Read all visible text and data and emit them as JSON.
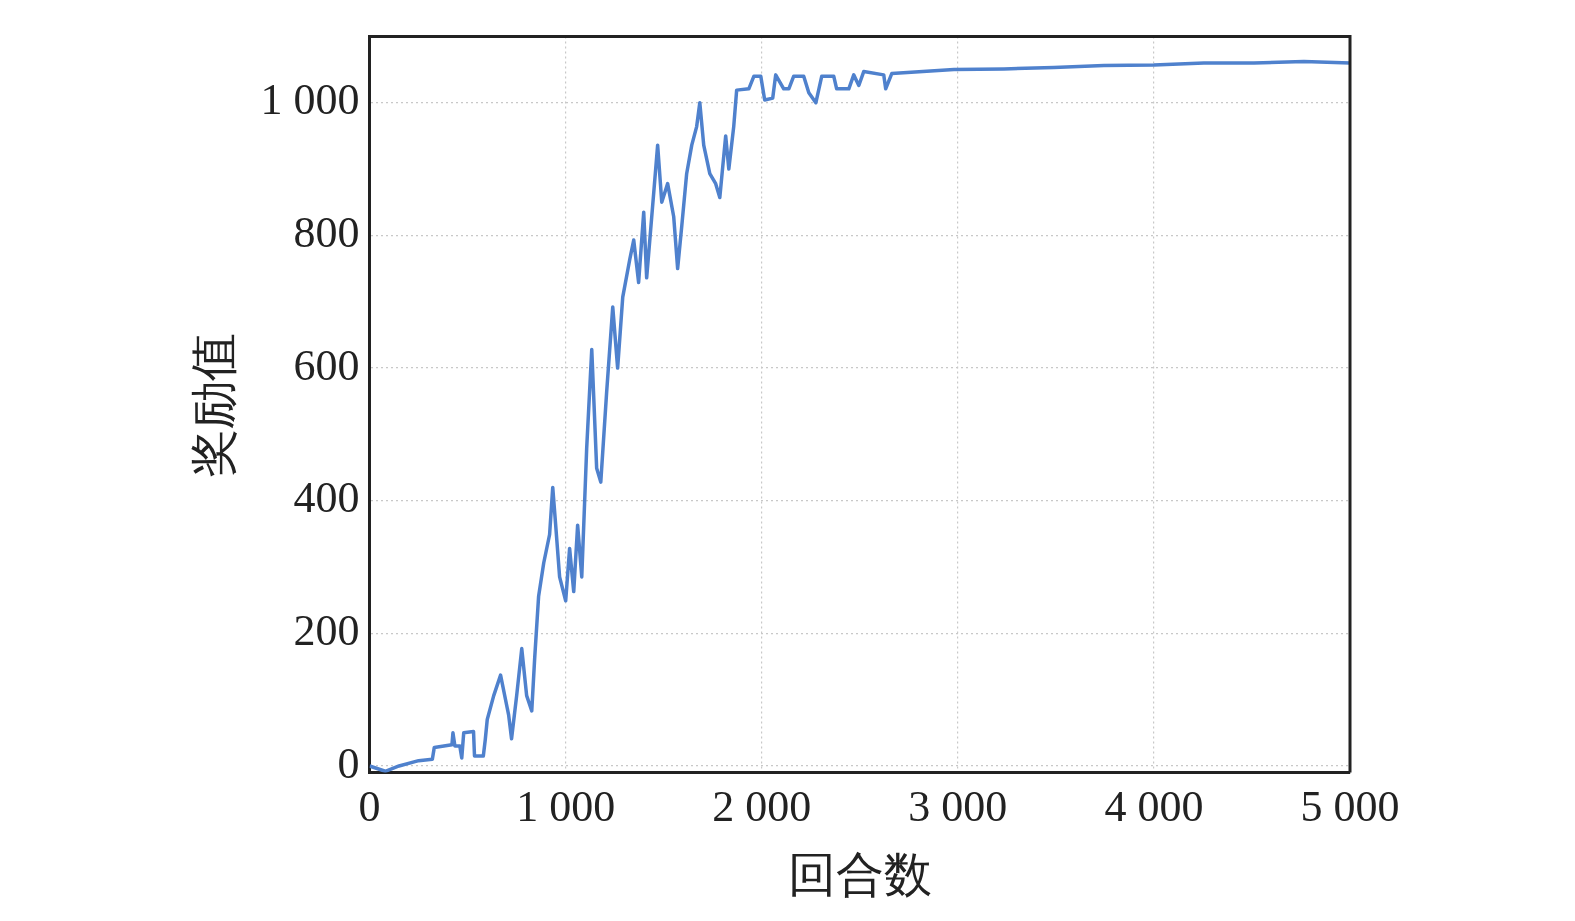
{
  "chart_data": {
    "type": "line",
    "xlabel": "回合数",
    "ylabel": "奖励值",
    "xlim": [
      0,
      5000
    ],
    "ylim": [
      -10,
      1100
    ],
    "xticks": [
      0,
      {
        "value": 1000,
        "label": "1 000"
      },
      {
        "value": 2000,
        "label": "2 000"
      },
      {
        "value": 3000,
        "label": "3 000"
      },
      {
        "value": 4000,
        "label": "4 000"
      },
      {
        "value": 5000,
        "label": "5 000"
      }
    ],
    "yticks": [
      0,
      200,
      400,
      600,
      800,
      {
        "value": 1000,
        "label": "1 000"
      }
    ],
    "grid": true,
    "marker": "none",
    "line_style": "solid",
    "series": [
      {
        "color": "#4f81cd",
        "x": [
          0,
          80,
          150,
          250,
          320,
          330,
          420,
          425,
          435,
          460,
          470,
          480,
          530,
          535,
          580,
          590,
          600,
          633,
          668,
          709,
          724,
          750,
          776,
          801,
          827,
          842,
          862,
          888,
          918,
          934,
          949,
          969,
          1000,
          1020,
          1041,
          1061,
          1082,
          1107,
          1133,
          1158,
          1179,
          1209,
          1240,
          1265,
          1291,
          1327,
          1347,
          1372,
          1398,
          1413,
          1449,
          1469,
          1490,
          1520,
          1551,
          1571,
          1592,
          1617,
          1643,
          1668,
          1684,
          1704,
          1735,
          1765,
          1786,
          1816,
          1832,
          1857,
          1872,
          1934,
          1960,
          1995,
          2015,
          2056,
          2071,
          2112,
          2138,
          2163,
          2214,
          2240,
          2276,
          2306,
          2367,
          2382,
          2444,
          2469,
          2495,
          2520,
          2622,
          2632,
          2663,
          2980,
          3235,
          3490,
          3745,
          4000,
          4255,
          4510,
          4765,
          5000
        ],
        "values": [
          0,
          -8,
          0,
          8,
          10,
          28,
          32,
          50,
          30,
          30,
          12,
          50,
          52,
          15,
          15,
          40,
          70,
          106,
          137,
          77,
          41,
          106,
          177,
          106,
          83,
          163,
          256,
          306,
          349,
          420,
          363,
          285,
          249,
          328,
          263,
          363,
          285,
          478,
          628,
          449,
          428,
          564,
          692,
          600,
          707,
          764,
          793,
          729,
          835,
          736,
          864,
          936,
          850,
          878,
          828,
          750,
          814,
          893,
          936,
          964,
          1000,
          936,
          893,
          878,
          857,
          950,
          900,
          964,
          1019,
          1021,
          1040,
          1040,
          1004,
          1007,
          1042,
          1021,
          1021,
          1040,
          1040,
          1015,
          1000,
          1040,
          1040,
          1021,
          1021,
          1042,
          1026,
          1047,
          1042,
          1021,
          1044,
          1050,
          1051,
          1053,
          1056,
          1057,
          1060,
          1060,
          1062,
          1060
        ]
      }
    ]
  }
}
